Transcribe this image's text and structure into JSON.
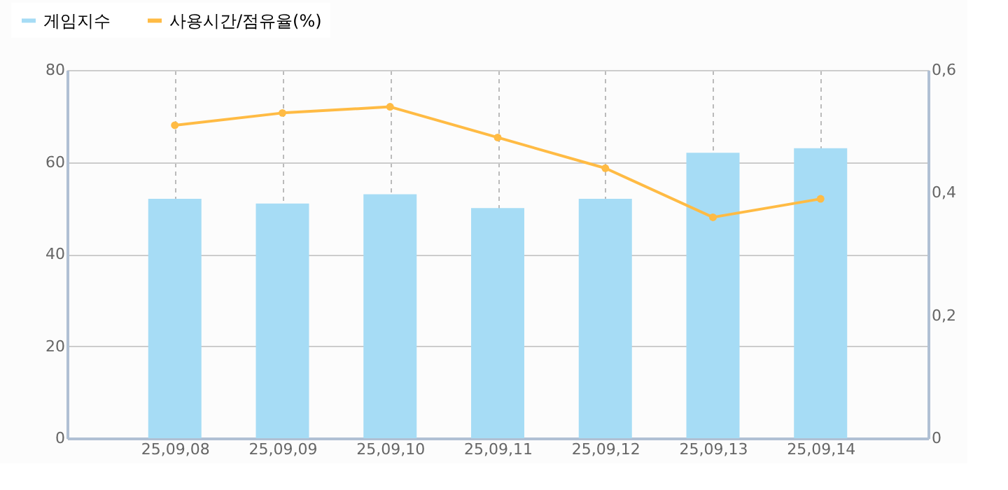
{
  "chart_data": {
    "type": "bar",
    "categories": [
      "25,09,08",
      "25,09,09",
      "25,09,10",
      "25,09,11",
      "25,09,12",
      "25,09,13",
      "25,09,14"
    ],
    "series": [
      {
        "name": "게임지수",
        "color": "#a6dcf5",
        "values": [
          52,
          51,
          53,
          50,
          52,
          62,
          63
        ]
      },
      {
        "name": "사용시간/점유율(%)",
        "type": "line",
        "axis": "y2",
        "color": "#ffbb44",
        "values": [
          0.51,
          0.53,
          0.54,
          0.49,
          0.44,
          0.36,
          0.39
        ]
      }
    ],
    "ylim": [
      0,
      80
    ],
    "yticks": [
      0,
      20,
      40,
      60,
      80
    ],
    "y2lim": [
      0,
      0.6
    ],
    "y2ticks": [
      0,
      {
        "value": 0.2,
        "label": "0,2"
      },
      {
        "value": 0.4,
        "label": "0,4"
      },
      {
        "value": 0.6,
        "label": "0,6"
      }
    ],
    "grid": true,
    "legend": "top left",
    "marker": "circle",
    "line_style": "solid"
  }
}
